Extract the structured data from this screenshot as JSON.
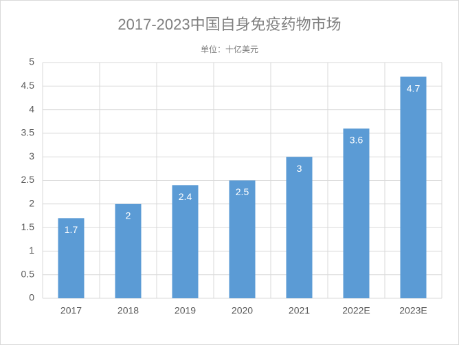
{
  "chart_data": {
    "type": "bar",
    "title": "2017-2023中国自身免疫药物市场",
    "subtitle": "单位：十亿美元",
    "categories": [
      "2017",
      "2018",
      "2019",
      "2020",
      "2021",
      "2022E",
      "2023E"
    ],
    "values": [
      1.7,
      2,
      2.4,
      2.5,
      3,
      3.6,
      4.7
    ],
    "color": "#5b9bd5",
    "ylim": [
      0,
      5
    ],
    "yticks": [
      0,
      0.5,
      1,
      1.5,
      2,
      2.5,
      3,
      3.5,
      4,
      4.5,
      5
    ],
    "grid": true
  }
}
